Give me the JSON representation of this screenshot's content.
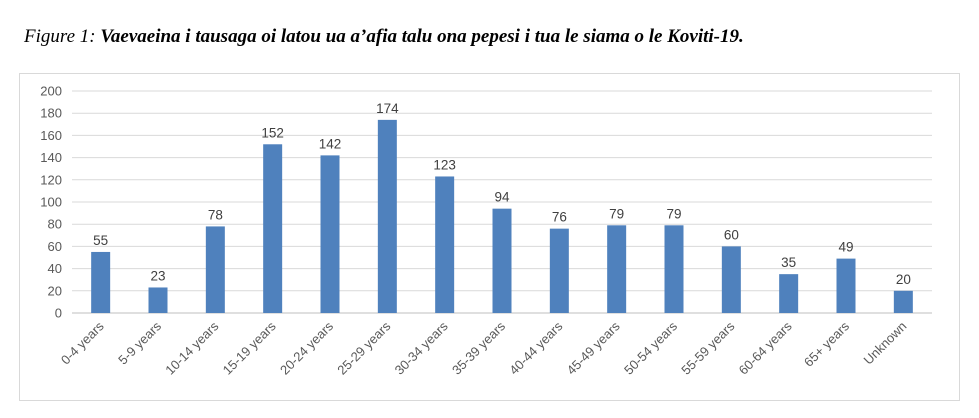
{
  "caption": {
    "label": "Figure 1: ",
    "title": "Vaevaeina i tausaga oi latou ua a’afia talu ona pepesi i tua le siama o le Koviti-19."
  },
  "chart_data": {
    "type": "bar",
    "categories": [
      "0-4 years",
      "5-9 years",
      "10-14 years",
      "15-19 years",
      "20-24 years",
      "25-29 years",
      "30-34 years",
      "35-39 years",
      "40-44 years",
      "45-49 years",
      "50-54 years",
      "55-59 years",
      "60-64 years",
      "65+ years",
      "Unknown"
    ],
    "values": [
      55,
      23,
      78,
      152,
      142,
      174,
      123,
      94,
      76,
      79,
      79,
      60,
      35,
      49,
      20
    ],
    "title": "",
    "xlabel": "",
    "ylabel": "",
    "ylim": [
      0,
      200
    ],
    "yticks": [
      0,
      20,
      40,
      60,
      80,
      100,
      120,
      140,
      160,
      180,
      200
    ],
    "grid": true,
    "bar_color": "#4f81bd",
    "grid_color": "#d9d9d9"
  }
}
